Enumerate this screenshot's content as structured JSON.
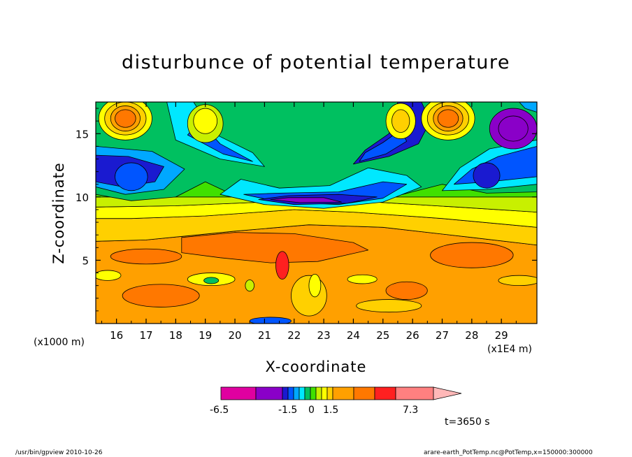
{
  "chart_data": {
    "type": "heatmap",
    "title": "disturbunce of potential temperature",
    "xlabel": "X-coordinate",
    "ylabel": "Z-coordinate",
    "x_unit_label": "(x1E4 m)",
    "y_unit_label": "(x1000 m)",
    "xlim": [
      15.3,
      30.2
    ],
    "ylim": [
      0,
      17.5
    ],
    "x_ticks": [
      16,
      17,
      18,
      19,
      20,
      21,
      22,
      23,
      24,
      25,
      26,
      27,
      28,
      29
    ],
    "y_ticks": [
      5,
      10,
      15
    ],
    "colorbar": {
      "colors": [
        "#e000a0",
        "#8a00c8",
        "#1a1ad0",
        "#0055ff",
        "#00a8ff",
        "#00e8ff",
        "#00c060",
        "#40e000",
        "#c8f000",
        "#ffff00",
        "#ffd000",
        "#ffa000",
        "#ff7800",
        "#ff2020",
        "#ff8080",
        "#ffb8b8"
      ],
      "min_label": "-6.5",
      "max_label": "7.3",
      "mid_labels": [
        "-1.5",
        "0",
        "1.5"
      ]
    },
    "time_label": "t=3650 s",
    "features": [
      {
        "kind": "warm-max",
        "x": 16.3,
        "z": 16.2
      },
      {
        "kind": "warm-max",
        "x": 27.2,
        "z": 16.2
      },
      {
        "kind": "warm-max",
        "x": 25.5,
        "z": 15.8
      },
      {
        "kind": "cold-min",
        "x": 22.5,
        "z": 9.7
      },
      {
        "kind": "cold-min",
        "x": 29.3,
        "z": 15.5
      },
      {
        "kind": "warm-max",
        "x": 21.6,
        "z": 4.5
      }
    ]
  },
  "footer": {
    "left": "/usr/bin/gpview   2010-10-26",
    "right": "arare-earth_PotTemp.nc@PotTemp,x=150000:300000"
  }
}
